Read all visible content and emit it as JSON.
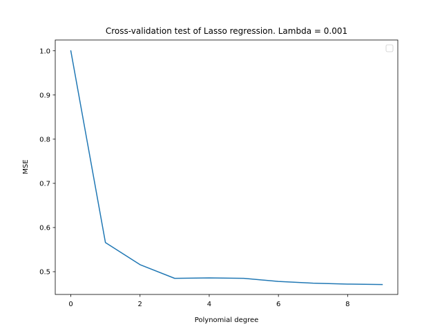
{
  "chart_data": {
    "type": "line",
    "title": "Cross-validation test of Lasso regression. Lambda = 0.001",
    "xlabel": "Polynomial degree",
    "ylabel": "MSE",
    "xlim": [
      -0.45,
      9.45
    ],
    "ylim": [
      0.4485,
      1.0245
    ],
    "x_ticks": [
      0,
      2,
      4,
      6,
      8
    ],
    "x_tick_labels": [
      "0",
      "2",
      "4",
      "6",
      "8"
    ],
    "y_ticks": [
      0.5,
      0.6,
      0.7,
      0.8,
      0.9,
      1.0
    ],
    "y_tick_labels": [
      "0.5",
      "0.6",
      "0.7",
      "0.8",
      "0.9",
      "1.0"
    ],
    "grid": false,
    "legend": {
      "placement": "top-right",
      "entries": []
    },
    "series": [
      {
        "color": "#1f77b4",
        "x": [
          0,
          1,
          2,
          3,
          4,
          5,
          6,
          7,
          8,
          9
        ],
        "values": [
          1.0,
          0.566,
          0.516,
          0.485,
          0.486,
          0.485,
          0.478,
          0.474,
          0.472,
          0.471
        ]
      }
    ]
  }
}
